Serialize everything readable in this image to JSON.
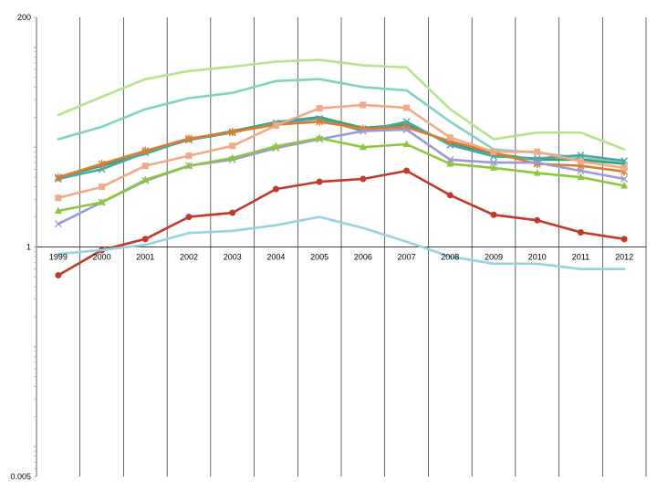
{
  "chart_data": {
    "type": "line",
    "title": "",
    "xlabel": "",
    "ylabel": "",
    "y_scale": "log",
    "ylim": [
      0.005,
      200
    ],
    "y_ticks": [
      "200",
      "1",
      "0.005"
    ],
    "grid": "vertical",
    "legend": "none",
    "categories": [
      "1999",
      "2000",
      "2001",
      "2002",
      "2003",
      "2004",
      "2005",
      "2006",
      "2007",
      "2008",
      "2009",
      "2010",
      "2011",
      "2012"
    ],
    "series": [
      {
        "color": "#b3e58a",
        "marker": "none",
        "values": [
          21,
          32,
          48,
          58,
          64,
          72,
          75,
          66,
          63,
          24,
          12,
          14,
          14,
          9.5
        ]
      },
      {
        "color": "#7fd2c4",
        "marker": "none",
        "values": [
          12,
          16,
          24,
          31,
          35,
          46,
          48,
          40,
          37,
          18,
          9.5,
          8.8,
          7.8,
          7
        ]
      },
      {
        "color": "#3f9f6e",
        "marker": "none",
        "values": [
          5,
          6.5,
          8.6,
          12,
          14.5,
          17.8,
          20,
          15.6,
          16.8,
          11,
          8.6,
          7.5,
          7.5,
          6.8
        ]
      },
      {
        "color": "#4aa6a8",
        "marker": "x",
        "values": [
          4.8,
          6,
          8.8,
          11.8,
          14,
          17.5,
          19.3,
          14.5,
          18,
          10.5,
          8.1,
          7.7,
          8.3,
          7.3
        ]
      },
      {
        "color": "#e07b2a",
        "marker": "asterisk",
        "values": [
          5,
          6.8,
          9.2,
          12.2,
          14.2,
          16.8,
          18,
          15.3,
          15.8,
          11.5,
          8.8,
          6.8,
          6.5,
          5.7
        ]
      },
      {
        "color": "#f2a98a",
        "marker": "square",
        "values": [
          3.1,
          4,
          6.5,
          8.2,
          10.3,
          16.5,
          24.5,
          26.5,
          24.8,
          12.5,
          9,
          9,
          7.2,
          6.2
        ]
      },
      {
        "color": "#9a9ad6",
        "marker": "x",
        "values": [
          1.7,
          2.8,
          4.6,
          6.5,
          7.5,
          9.8,
          12,
          14.5,
          15,
          7.5,
          7,
          7,
          5.8,
          4.8
        ]
      },
      {
        "color": "#8cc63f",
        "marker": "triangle",
        "values": [
          2.3,
          2.8,
          4.7,
          6.5,
          7.8,
          10.2,
          12.3,
          10,
          10.7,
          6.8,
          6.2,
          5.5,
          5,
          4.1
        ]
      },
      {
        "color": "#c0392b",
        "marker": "circle",
        "values": [
          0.52,
          0.93,
          1.2,
          2,
          2.2,
          3.8,
          4.5,
          4.8,
          5.8,
          3.3,
          2.1,
          1.85,
          1.4,
          1.2
        ]
      },
      {
        "color": "#93d3e3",
        "marker": "none",
        "values": [
          0.85,
          0.93,
          1.05,
          1.38,
          1.45,
          1.65,
          2,
          1.55,
          1.13,
          0.8,
          0.68,
          0.68,
          0.6,
          0.6
        ]
      }
    ]
  }
}
